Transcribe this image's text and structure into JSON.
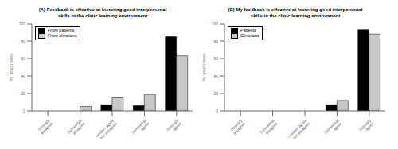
{
  "chart_data": [
    {
      "type": "bar",
      "title": "(A) Feedback is effective at fostering good interpersonal\nskills in the clinic learning environment",
      "categories": [
        "Strongly\ndisagree",
        "Somewhat\ndisagree",
        "Neither agree\nnor disagree",
        "Somewhat\nagree",
        "Strongly\nagree"
      ],
      "series": [
        {
          "name": "From patients",
          "color": "#000000",
          "values": [
            0,
            0,
            7,
            6,
            85
          ]
        },
        {
          "name": "From clinicians",
          "color": "#c8c8c8",
          "values": [
            0,
            5,
            15,
            19,
            63
          ]
        }
      ],
      "ylabel": "% responses",
      "ylim": [
        0,
        100
      ],
      "yticks": [
        0,
        20,
        40,
        60,
        80,
        100
      ],
      "legend": "upper left",
      "grid": false
    },
    {
      "type": "bar",
      "title": "(B) My feedback is effective at fostering good interpersonal\nskills in the clinic learning environment",
      "categories": [
        "Strongly\ndisagree",
        "Somewhat\ndisagree",
        "Neither agree\nnor disagree",
        "Somewhat\nagree",
        "Strongly\nagree"
      ],
      "series": [
        {
          "name": "Patients",
          "color": "#000000",
          "values": [
            0,
            0,
            0,
            7,
            93
          ]
        },
        {
          "name": "Clinicians",
          "color": "#c8c8c8",
          "values": [
            0,
            0,
            0,
            12,
            88
          ]
        }
      ],
      "ylabel": "% responses",
      "ylim": [
        0,
        100
      ],
      "yticks": [
        0,
        20,
        40,
        60,
        80,
        100
      ],
      "legend": "upper left",
      "grid": false
    }
  ]
}
